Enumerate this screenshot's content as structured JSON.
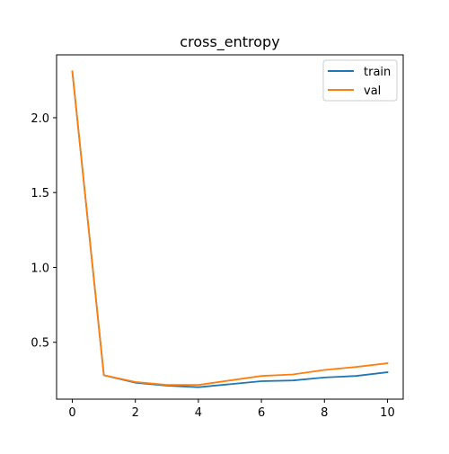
{
  "chart_data": {
    "type": "line",
    "title": "cross_entropy",
    "xlabel": "",
    "ylabel": "",
    "x": [
      0,
      1,
      2,
      3,
      4,
      5,
      6,
      7,
      8,
      9,
      10
    ],
    "xlim": [
      -0.5,
      10.5
    ],
    "ylim": [
      0.12,
      2.42
    ],
    "xticks": [
      0,
      2,
      4,
      6,
      8,
      10
    ],
    "yticks": [
      0.5,
      1.0,
      1.5,
      2.0
    ],
    "ytick_labels": [
      "0.5",
      "1.0",
      "1.5",
      "2.0"
    ],
    "grid": false,
    "legend_position": "upper right",
    "series": [
      {
        "name": "train",
        "color": "#1f77b4",
        "values": [
          2.31,
          0.28,
          0.23,
          0.21,
          0.2,
          0.22,
          0.24,
          0.245,
          0.265,
          0.275,
          0.3
        ]
      },
      {
        "name": "val",
        "color": "#ff7f0e",
        "values": [
          2.31,
          0.28,
          0.235,
          0.215,
          0.215,
          0.245,
          0.275,
          0.285,
          0.315,
          0.335,
          0.36
        ]
      }
    ]
  }
}
